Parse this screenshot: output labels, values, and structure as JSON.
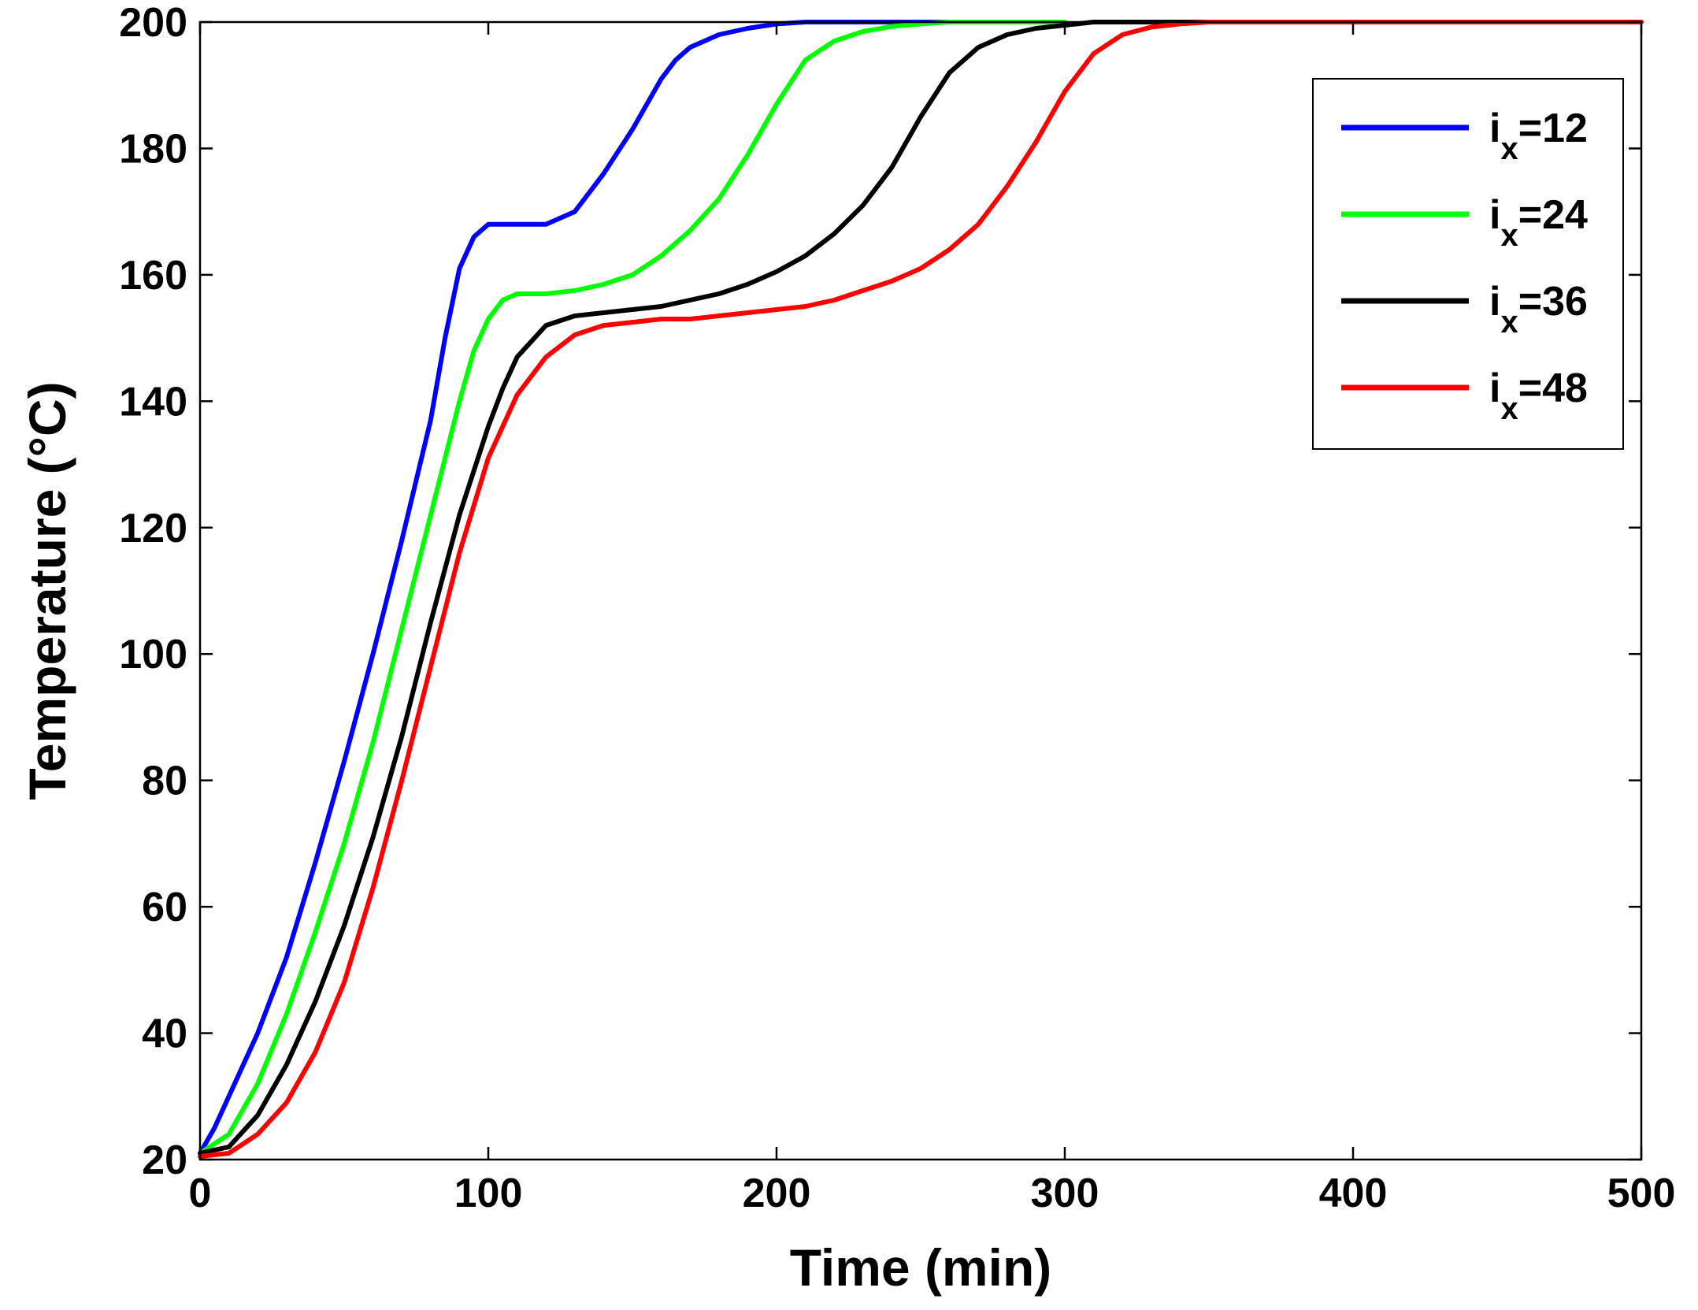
{
  "chart_data": {
    "type": "line",
    "title": "",
    "xlabel": "Time (min)",
    "ylabel": "Temperature (°C)",
    "xlim": [
      0,
      500
    ],
    "ylim": [
      20,
      200
    ],
    "xticks": [
      "0",
      "100",
      "200",
      "300",
      "400",
      "500"
    ],
    "yticks": [
      "20",
      "40",
      "60",
      "80",
      "100",
      "120",
      "140",
      "160",
      "180",
      "200"
    ],
    "grid": false,
    "legend_position": "top-right",
    "series": [
      {
        "name": "i_x=12",
        "label_main": "i",
        "label_sub": "x",
        "label_tail": "=12",
        "color": "#0000ff",
        "x": [
          0,
          5,
          10,
          20,
          30,
          40,
          50,
          60,
          70,
          80,
          85,
          90,
          95,
          100,
          110,
          120,
          130,
          140,
          150,
          160,
          165,
          170,
          180,
          190,
          200,
          210,
          220,
          250,
          260
        ],
        "y": [
          21,
          25,
          30,
          40,
          52,
          67,
          83,
          100,
          118,
          137,
          150,
          161,
          166,
          168,
          168,
          168,
          170,
          176,
          183,
          191,
          194,
          196,
          198,
          199,
          199.7,
          200,
          200,
          200,
          200
        ]
      },
      {
        "name": "i_x=24",
        "label_main": "i",
        "label_sub": "x",
        "label_tail": "=24",
        "color": "#00ff00",
        "x": [
          0,
          10,
          20,
          30,
          40,
          50,
          60,
          70,
          80,
          90,
          95,
          100,
          105,
          110,
          120,
          130,
          140,
          150,
          160,
          170,
          180,
          190,
          200,
          210,
          220,
          230,
          240,
          250,
          260,
          300
        ],
        "y": [
          21,
          24,
          32,
          43,
          56,
          70,
          86,
          104,
          122,
          140,
          148,
          153,
          156,
          157,
          157,
          157.5,
          158.5,
          160,
          163,
          167,
          172,
          179,
          187,
          194,
          197,
          198.5,
          199.3,
          199.7,
          200,
          200
        ]
      },
      {
        "name": "i_x=36",
        "label_main": "i",
        "label_sub": "x",
        "label_tail": "=36",
        "color": "#000000",
        "x": [
          0,
          10,
          20,
          30,
          40,
          50,
          60,
          70,
          80,
          90,
          100,
          105,
          110,
          120,
          130,
          140,
          150,
          160,
          170,
          180,
          190,
          200,
          210,
          220,
          230,
          240,
          250,
          260,
          270,
          280,
          290,
          300,
          310,
          350
        ],
        "y": [
          21,
          22,
          27,
          35,
          45,
          57,
          71,
          87,
          105,
          122,
          136,
          142,
          147,
          152,
          153.5,
          154,
          154.5,
          155,
          156,
          157,
          158.5,
          160.5,
          163,
          166.5,
          171,
          177,
          185,
          192,
          196,
          198,
          199,
          199.5,
          200,
          200
        ]
      },
      {
        "name": "i_x=48",
        "label_main": "i",
        "label_sub": "x",
        "label_tail": "=48",
        "color": "#ff0000",
        "x": [
          0,
          10,
          20,
          30,
          40,
          50,
          60,
          70,
          80,
          90,
          100,
          110,
          120,
          130,
          140,
          150,
          160,
          170,
          180,
          190,
          200,
          210,
          220,
          230,
          240,
          250,
          260,
          270,
          280,
          290,
          300,
          310,
          320,
          330,
          340,
          350,
          360,
          400,
          450,
          500
        ],
        "y": [
          20.5,
          21,
          24,
          29,
          37,
          48,
          63,
          80,
          98,
          116,
          131,
          141,
          147,
          150.5,
          152,
          152.5,
          153,
          153,
          153.5,
          154,
          154.5,
          155,
          156,
          157.5,
          159,
          161,
          164,
          168,
          174,
          181,
          189,
          195,
          198,
          199.2,
          199.7,
          200,
          200,
          200,
          200,
          200
        ]
      }
    ]
  }
}
